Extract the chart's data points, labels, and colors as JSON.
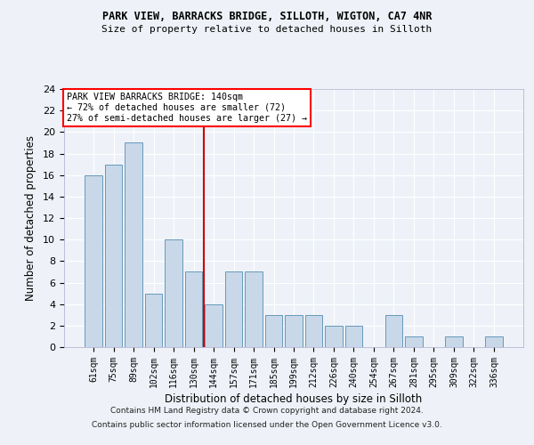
{
  "title1": "PARK VIEW, BARRACKS BRIDGE, SILLOTH, WIGTON, CA7 4NR",
  "title2": "Size of property relative to detached houses in Silloth",
  "xlabel": "Distribution of detached houses by size in Silloth",
  "ylabel": "Number of detached properties",
  "categories": [
    "61sqm",
    "75sqm",
    "89sqm",
    "102sqm",
    "116sqm",
    "130sqm",
    "144sqm",
    "157sqm",
    "171sqm",
    "185sqm",
    "199sqm",
    "212sqm",
    "226sqm",
    "240sqm",
    "254sqm",
    "267sqm",
    "281sqm",
    "295sqm",
    "309sqm",
    "322sqm",
    "336sqm"
  ],
  "values": [
    16,
    17,
    19,
    5,
    10,
    7,
    4,
    7,
    7,
    3,
    3,
    3,
    2,
    2,
    0,
    3,
    1,
    0,
    1,
    0,
    1
  ],
  "bar_color": "#c8d8e8",
  "bar_edge_color": "#6699bb",
  "annotation_title": "PARK VIEW BARRACKS BRIDGE: 140sqm",
  "annotation_line1": "← 72% of detached houses are smaller (72)",
  "annotation_line2": "27% of semi-detached houses are larger (27) →",
  "ylim": [
    0,
    24
  ],
  "yticks": [
    0,
    2,
    4,
    6,
    8,
    10,
    12,
    14,
    16,
    18,
    20,
    22,
    24
  ],
  "background_color": "#eef2f8",
  "grid_color": "#ffffff",
  "footer1": "Contains HM Land Registry data © Crown copyright and database right 2024.",
  "footer2": "Contains public sector information licensed under the Open Government Licence v3.0."
}
